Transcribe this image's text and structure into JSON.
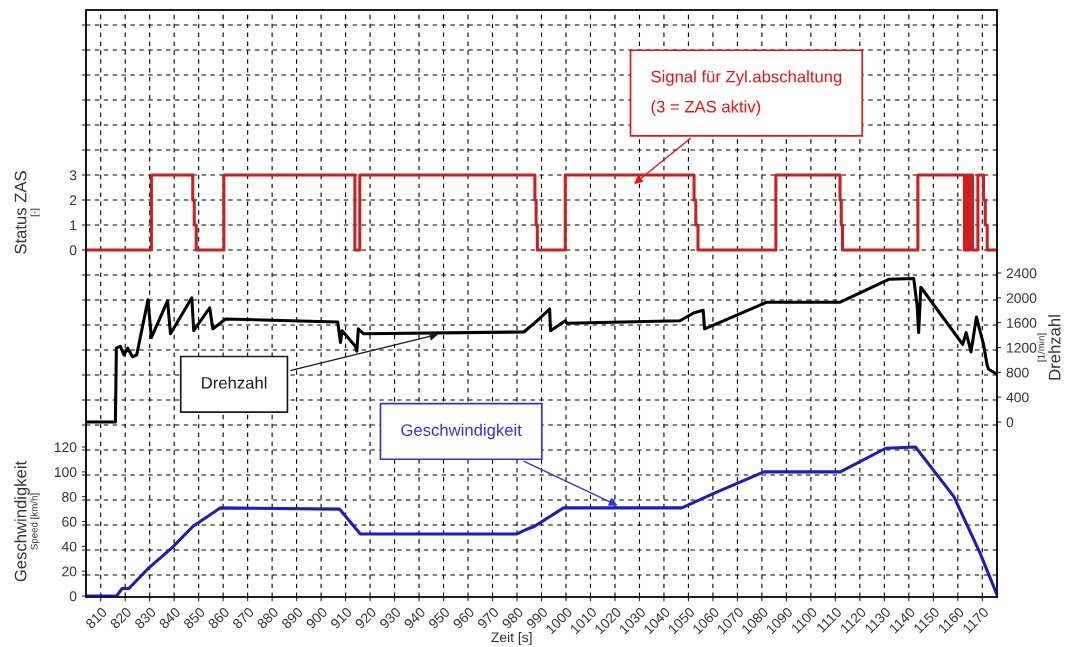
{
  "chart_data": {
    "type": "line",
    "xlabel": "Zeit [s]",
    "xlim": [
      804,
      1176
    ],
    "xticks": [
      810,
      820,
      830,
      840,
      850,
      860,
      870,
      880,
      890,
      900,
      910,
      920,
      930,
      940,
      950,
      960,
      970,
      980,
      990,
      1000,
      1010,
      1020,
      1030,
      1040,
      1050,
      1060,
      1070,
      1080,
      1090,
      1100,
      1110,
      1120,
      1130,
      1140,
      1150,
      1160,
      1170
    ],
    "ylabel": "Status ZAS\n[-]",
    "ylim": [
      -13.88,
      9.6
    ],
    "yticks": [
      {
        "value": -13,
        "label": null
      },
      {
        "value": -12,
        "label": null
      },
      {
        "value": -11,
        "label": null
      },
      {
        "value": -10,
        "label": null
      },
      {
        "value": -9,
        "label": null
      },
      {
        "value": -8,
        "label": null
      },
      {
        "value": -7,
        "label": null
      },
      {
        "value": -6,
        "label": null
      },
      {
        "value": -5,
        "label": null
      },
      {
        "value": -4,
        "label": null
      },
      {
        "value": -3,
        "label": null
      },
      {
        "value": -2,
        "label": null
      },
      {
        "value": -1,
        "label": null
      },
      0,
      1,
      2,
      3,
      {
        "value": 4,
        "label": null
      },
      {
        "value": 5,
        "label": null
      },
      {
        "value": 6,
        "label": null
      },
      {
        "value": 7,
        "label": null
      },
      {
        "value": 8,
        "label": null
      },
      {
        "value": 9,
        "label": null
      }
    ],
    "y2label": "Drehzahl\n[1/min]",
    "y2lim": [
      -2819,
      6636
    ],
    "y2ticks": [
      0,
      400,
      800,
      1200,
      1600,
      2000,
      2400
    ],
    "y3label": "Geschwindigkeit\nSpeed [km/h]",
    "y3lim": [
      -0.8,
      472
    ],
    "y3ticks": [
      0,
      20,
      40,
      60,
      80,
      100,
      120
    ],
    "grid": true,
    "series": [
      {
        "type": "step",
        "axis": "y",
        "color": "#cc1f1f",
        "x": [
          804,
          830.7,
          847.6,
          848.2,
          849,
          860.3,
          913.8,
          915.8,
          987.3,
          987.8,
          988.3,
          999.7,
          1052.3,
          1053,
          1053.9,
          1085.7,
          1111.9,
          1112.4,
          1112.9,
          1143.7,
          1162.7,
          1163.5,
          1164.3,
          1165,
          1166,
          1168.2,
          1170.5,
          1171.2,
          1172,
          1176
        ],
        "values": [
          0,
          3,
          2,
          1,
          0,
          3,
          0,
          3,
          2,
          1,
          0,
          3,
          2,
          1,
          0,
          3,
          2,
          1,
          0,
          3,
          0,
          3,
          0,
          3,
          0,
          3,
          2,
          1,
          0,
          0
        ]
      },
      {
        "axis": "y2",
        "color": "#000000",
        "x": [
          804,
          816,
          816.4,
          818,
          819.5,
          821,
          823,
          824.7,
          829.3,
          830.7,
          837.3,
          838.5,
          847.2,
          848,
          854.5,
          855.8,
          861,
          906.8,
          907.9,
          908.6,
          914,
          914.6,
          915.2,
          917.4,
          982.8,
          988.5,
          993.3,
          993.7,
          999.7,
          1000.4,
          1046.5,
          1052.3,
          1056,
          1056.6,
          1065,
          1082,
          1112,
          1132,
          1142,
          1143.4,
          1144,
          1144.9,
          1162,
          1163.4,
          1165.4,
          1167.6,
          1170.5,
          1172,
          1172.6,
          1176
        ],
        "values": [
          0,
          0,
          1190,
          1220,
          1080,
          1190,
          1050,
          1080,
          1970,
          1360,
          1950,
          1420,
          2000,
          1470,
          1840,
          1500,
          1660,
          1610,
          1280,
          1470,
          1220,
          1140,
          1500,
          1420,
          1450,
          1640,
          1820,
          1470,
          1630,
          1590,
          1630,
          1760,
          1800,
          1500,
          1640,
          1930,
          1930,
          2300,
          2310,
          1870,
          1440,
          2170,
          1250,
          1440,
          1130,
          1690,
          1250,
          910,
          850,
          770
        ]
      },
      {
        "axis": "y3",
        "color": "#1c1cc0",
        "x": [
          804,
          816.5,
          818.7,
          821.5,
          829.3,
          839.2,
          847.6,
          858.9,
          907.5,
          916,
          980,
          984.3,
          987,
          999,
          1047.3,
          1060.8,
          1080.8,
          1112,
          1130.6,
          1142.7,
          1158.4,
          1169,
          1176
        ],
        "values": [
          0,
          0,
          6,
          6,
          22,
          39,
          56,
          71,
          70,
          50,
          50,
          54,
          56,
          71,
          71,
          83,
          100,
          100,
          119,
          120,
          80,
          35,
          1
        ]
      }
    ],
    "annotations": [
      "Signal für Zyl.abschaltung\n(3 = ZAS aktiv)",
      "Drehzahl",
      "Geschwindigkeit"
    ]
  }
}
